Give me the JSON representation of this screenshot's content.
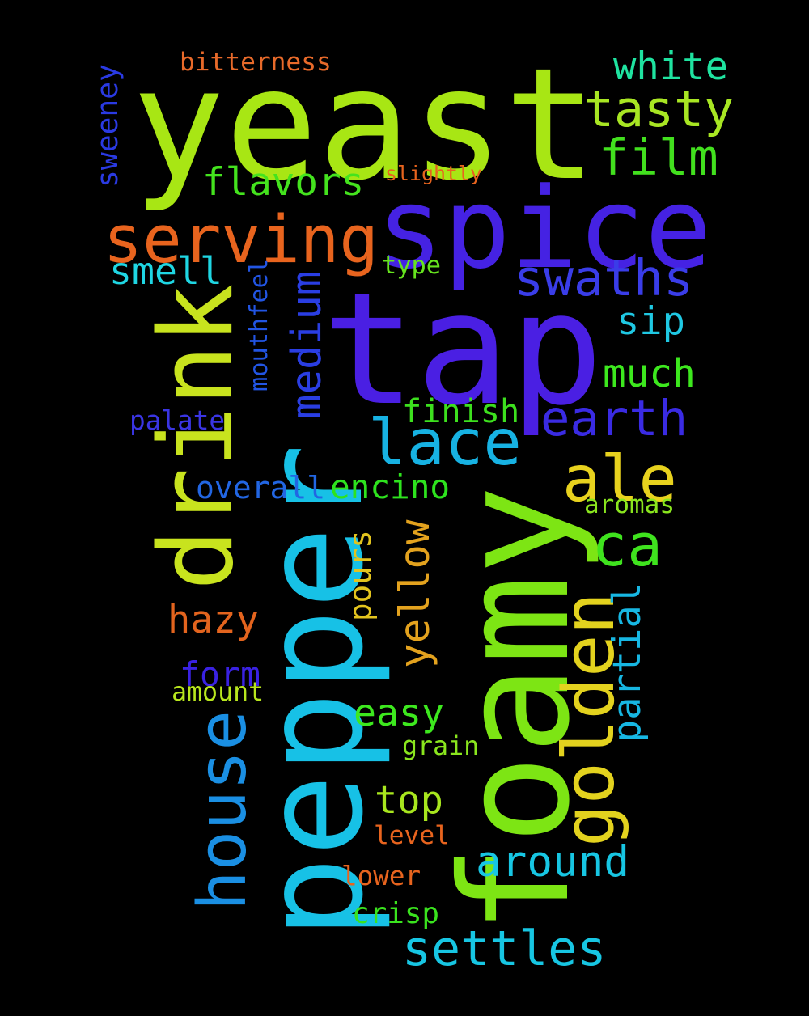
{
  "word_cloud": {
    "background": "#000000",
    "words": [
      {
        "text": "yeast",
        "color": "#a8e614"
      },
      {
        "text": "tap",
        "color": "#4a1fe3"
      },
      {
        "text": "pepper",
        "color": "#17c1e6"
      },
      {
        "text": "foamy",
        "color": "#7de514"
      },
      {
        "text": "spice",
        "color": "#4522e3"
      },
      {
        "text": "drink",
        "color": "#c8e31e"
      },
      {
        "text": "serving",
        "color": "#e8641e"
      },
      {
        "text": "house",
        "color": "#1a8fe3"
      },
      {
        "text": "golden",
        "color": "#e3d21e"
      },
      {
        "text": "lace",
        "color": "#17b2e3"
      },
      {
        "text": "ale",
        "color": "#e8d21e"
      },
      {
        "text": "earth",
        "color": "#3a2be3"
      },
      {
        "text": "swaths",
        "color": "#3a3de8"
      },
      {
        "text": "film",
        "color": "#42e01e"
      },
      {
        "text": "tasty",
        "color": "#a8e623"
      },
      {
        "text": "white",
        "color": "#1fe3a0"
      },
      {
        "text": "medium",
        "color": "#2a3ee3"
      },
      {
        "text": "yellow",
        "color": "#e3a21e"
      },
      {
        "text": "ca",
        "color": "#3fe31e"
      },
      {
        "text": "settles",
        "color": "#17c6e3"
      },
      {
        "text": "around",
        "color": "#17c6e3"
      },
      {
        "text": "much",
        "color": "#3de81e"
      },
      {
        "text": "finish",
        "color": "#3de01e"
      },
      {
        "text": "flavors",
        "color": "#44e31e"
      },
      {
        "text": "smell",
        "color": "#1fd6e3"
      },
      {
        "text": "hazy",
        "color": "#e3641e"
      },
      {
        "text": "easy",
        "color": "#3de81e"
      },
      {
        "text": "top",
        "color": "#a8e61e"
      },
      {
        "text": "encino",
        "color": "#2ee31e"
      },
      {
        "text": "overall",
        "color": "#2266e3"
      },
      {
        "text": "sip",
        "color": "#1fc8e3"
      },
      {
        "text": "partial",
        "color": "#17b7e3"
      },
      {
        "text": "form",
        "color": "#3a22e3"
      },
      {
        "text": "pours",
        "color": "#e3c41e"
      },
      {
        "text": "crisp",
        "color": "#3ae31e"
      },
      {
        "text": "sweeney",
        "color": "#2a3ae3"
      },
      {
        "text": "mouthfeel",
        "color": "#2255e3"
      },
      {
        "text": "bitterness",
        "color": "#e86a2a"
      },
      {
        "text": "type",
        "color": "#66e31e"
      },
      {
        "text": "palate",
        "color": "#3a35e3"
      },
      {
        "text": "amount",
        "color": "#b8e61e"
      },
      {
        "text": "aromas",
        "color": "#8ae61e"
      },
      {
        "text": "grain",
        "color": "#8ae61e"
      },
      {
        "text": "level",
        "color": "#e8641e"
      },
      {
        "text": "lower",
        "color": "#e8641e"
      },
      {
        "text": "slightly",
        "color": "#e8641e"
      }
    ]
  }
}
